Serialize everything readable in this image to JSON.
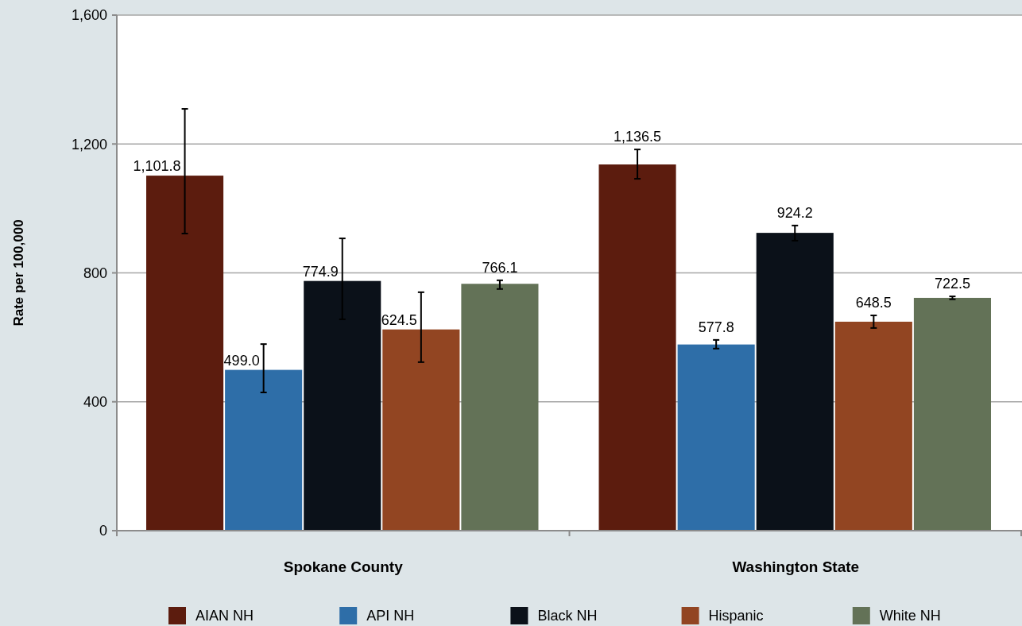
{
  "chart_data": {
    "type": "bar",
    "ylabel": "Rate per 100,000",
    "categories": [
      "Spokane County",
      "Washington State"
    ],
    "ylim": [
      0,
      1600
    ],
    "yticks": [
      0,
      400,
      800,
      {
        "value": 1200,
        "label": "1,200"
      },
      {
        "value": 1600,
        "label": "1,600"
      }
    ],
    "grid": "y",
    "legend": "bottom",
    "series": [
      {
        "name": "AIAN NH",
        "color": "#5c1c0e",
        "values": [
          1101.8,
          1136.5
        ],
        "errors": [
          [
            922,
            1309
          ],
          [
            1092,
            1183
          ]
        ],
        "value_labels": [
          "1,101.8",
          "1,136.5"
        ]
      },
      {
        "name": "API NH",
        "color": "#2e6ea8",
        "values": [
          499.0,
          577.8
        ],
        "errors": [
          [
            429,
            579
          ],
          [
            565,
            592
          ]
        ],
        "value_labels": [
          "499.0",
          "577.8"
        ]
      },
      {
        "name": "Black NH",
        "color": "#0b1119",
        "values": [
          774.9,
          924.2
        ],
        "errors": [
          [
            656,
            907
          ],
          [
            900,
            947
          ]
        ],
        "value_labels": [
          "774.9",
          "924.2"
        ]
      },
      {
        "name": "Hispanic",
        "color": "#924522",
        "values": [
          624.5,
          648.5
        ],
        "errors": [
          [
            523,
            740
          ],
          [
            629,
            668
          ]
        ],
        "value_labels": [
          "624.5",
          "648.5"
        ]
      },
      {
        "name": "White NH",
        "color": "#637257",
        "values": [
          766.1,
          722.5
        ],
        "errors": [
          [
            750,
            777
          ],
          [
            718,
            727
          ]
        ],
        "value_labels": [
          "766.1",
          "722.5"
        ]
      }
    ]
  }
}
